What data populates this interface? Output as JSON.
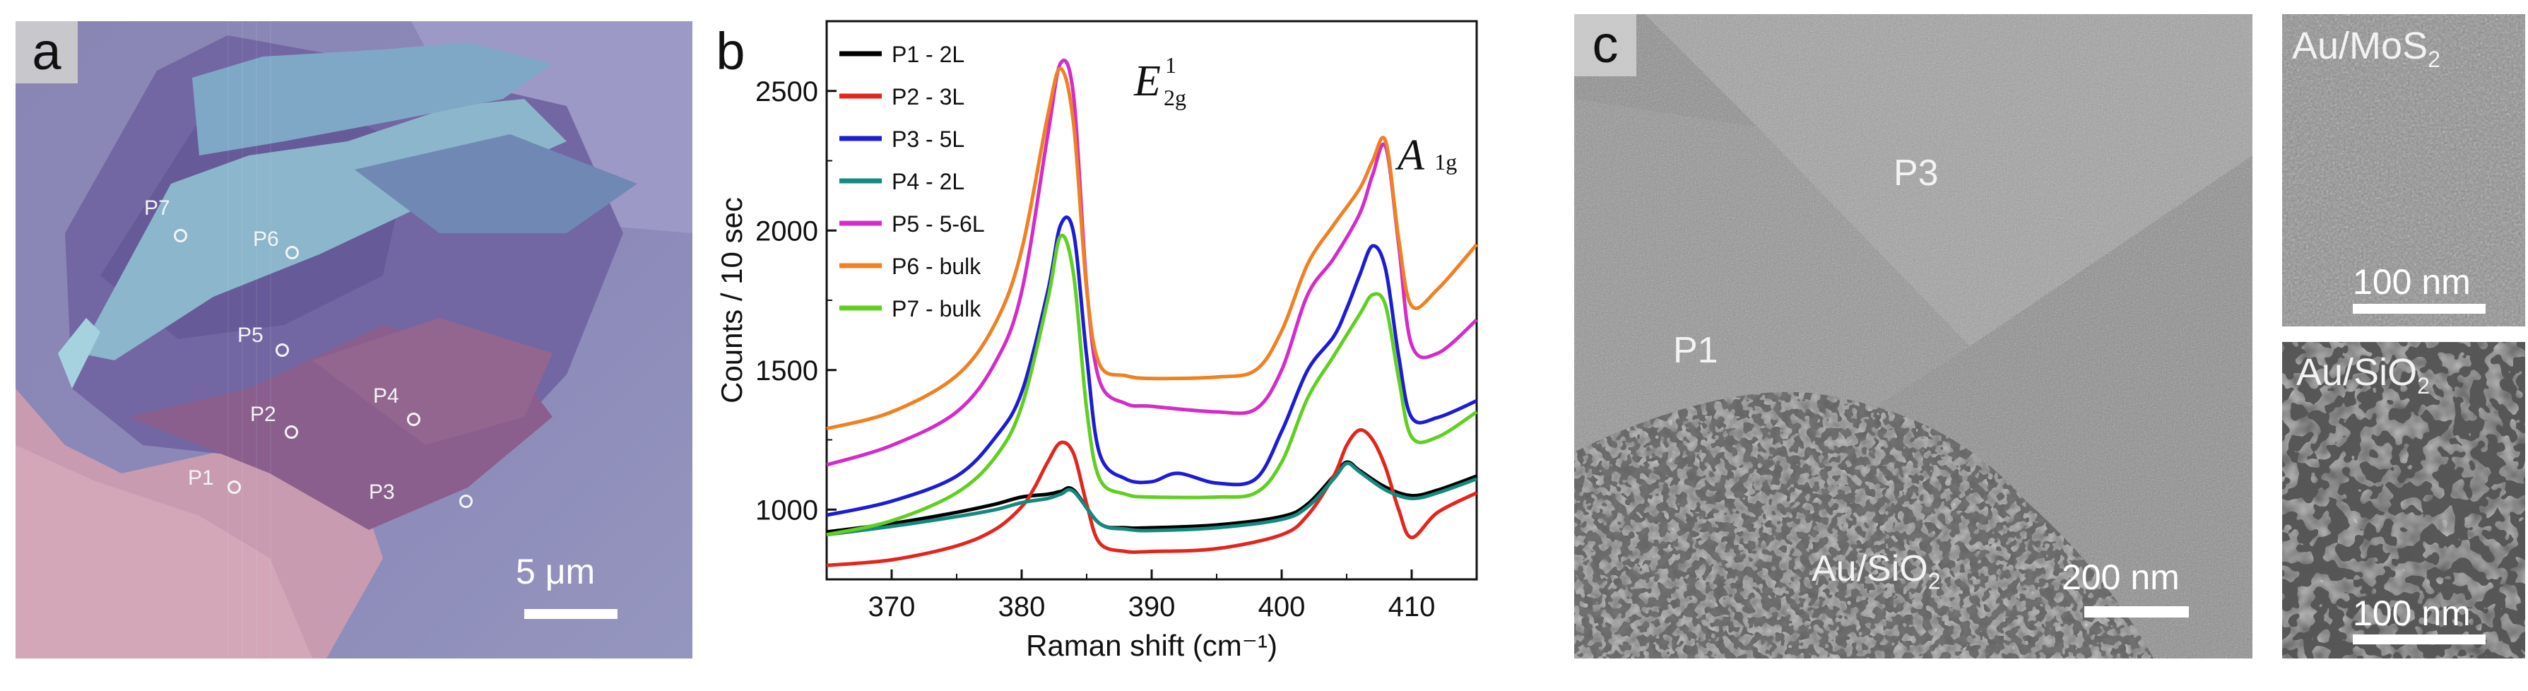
{
  "panel_a": {
    "label": "a",
    "points": [
      "P7",
      "P6",
      "P5",
      "P2",
      "P4",
      "P1",
      "P3"
    ],
    "scale_bar": "5 μm"
  },
  "panel_b": {
    "label": "b",
    "peak_labels": {
      "e2g_base": "E",
      "e2g_sup": "1",
      "e2g_sub": "2g",
      "a1g_base": "A",
      "a1g_sub": "1g"
    }
  },
  "panel_c": {
    "label": "c",
    "region_labels": {
      "p3": "P3",
      "p1": "P1",
      "au_sio2_prefix": "Au/SiO",
      "au_sio2_sub": "2"
    },
    "scale_bar_main": "200 nm",
    "inset_top": {
      "title_prefix": "Au/MoS",
      "title_sub": "2",
      "scale_bar": "100 nm"
    },
    "inset_bottom": {
      "title_prefix": "Au/SiO",
      "title_sub": "2",
      "scale_bar": "100 nm"
    }
  },
  "chart_data": {
    "type": "line",
    "title": "",
    "xlabel": "Raman shift (cm⁻¹)",
    "ylabel": "Counts / 10 sec",
    "xlim": [
      365,
      415
    ],
    "ylim": [
      750,
      2750
    ],
    "xticks": [
      370,
      380,
      390,
      400,
      410
    ],
    "yticks": [
      1000,
      1500,
      2000,
      2500
    ],
    "legend_position": "top-left",
    "series": [
      {
        "name": "P1 - 2L",
        "color": "#000000",
        "x": [
          365,
          370,
          375,
          378,
          380,
          382,
          383,
          384,
          386,
          388,
          390,
          395,
          400,
          402,
          404,
          405,
          406,
          408,
          410,
          412,
          415
        ],
        "y": [
          920,
          950,
          990,
          1020,
          1045,
          1055,
          1065,
          1070,
          950,
          935,
          935,
          945,
          975,
          1020,
          1120,
          1170,
          1140,
          1080,
          1050,
          1070,
          1120
        ]
      },
      {
        "name": "P2 - 3L",
        "color": "#e3261d",
        "x": [
          365,
          370,
          375,
          378,
          380,
          381,
          382,
          383,
          384,
          385,
          386,
          388,
          390,
          395,
          400,
          402,
          404,
          405,
          406,
          407,
          408,
          409,
          410,
          412,
          415
        ],
        "y": [
          800,
          820,
          870,
          930,
          1010,
          1080,
          1170,
          1240,
          1200,
          1020,
          880,
          850,
          850,
          860,
          910,
          980,
          1120,
          1230,
          1285,
          1250,
          1150,
          1000,
          900,
          990,
          1060
        ]
      },
      {
        "name": "P3 - 5L",
        "color": "#1c1cd6",
        "x": [
          365,
          370,
          375,
          378,
          380,
          382,
          383,
          384,
          385,
          386,
          388,
          390,
          392,
          395,
          398,
          400,
          402,
          404,
          405,
          406,
          407,
          408,
          409,
          410,
          412,
          415
        ],
        "y": [
          980,
          1030,
          1120,
          1260,
          1420,
          1780,
          2020,
          1990,
          1550,
          1200,
          1110,
          1100,
          1130,
          1095,
          1110,
          1280,
          1500,
          1620,
          1720,
          1840,
          1945,
          1860,
          1550,
          1330,
          1330,
          1390
        ]
      },
      {
        "name": "P4 - 2L",
        "color": "#14897e",
        "x": [
          365,
          370,
          375,
          378,
          380,
          382,
          383,
          384,
          386,
          388,
          390,
          395,
          400,
          402,
          404,
          405,
          406,
          408,
          410,
          412,
          415
        ],
        "y": [
          910,
          940,
          975,
          1000,
          1025,
          1040,
          1055,
          1065,
          950,
          930,
          925,
          935,
          965,
          1010,
          1110,
          1165,
          1135,
          1070,
          1040,
          1060,
          1110
        ]
      },
      {
        "name": "P5 - 5-6L",
        "color": "#d42bc9",
        "x": [
          365,
          370,
          375,
          378,
          380,
          382,
          383,
          384,
          385,
          386,
          388,
          390,
          395,
          398,
          400,
          402,
          404,
          406,
          407,
          408,
          409,
          410,
          412,
          415
        ],
        "y": [
          1160,
          1230,
          1350,
          1530,
          1780,
          2340,
          2600,
          2480,
          1800,
          1460,
          1380,
          1370,
          1350,
          1360,
          1500,
          1770,
          1900,
          2060,
          2200,
          2300,
          1950,
          1590,
          1560,
          1680
        ]
      },
      {
        "name": "P6 - bulk",
        "color": "#f08020",
        "x": [
          365,
          370,
          375,
          378,
          380,
          382,
          383,
          384,
          385,
          386,
          388,
          390,
          395,
          398,
          400,
          402,
          404,
          406,
          407,
          408,
          409,
          410,
          412,
          415
        ],
        "y": [
          1290,
          1350,
          1480,
          1670,
          1930,
          2410,
          2580,
          2380,
          1790,
          1520,
          1480,
          1470,
          1475,
          1500,
          1640,
          1880,
          2020,
          2150,
          2250,
          2320,
          1970,
          1730,
          1790,
          1950
        ]
      },
      {
        "name": "P7 - bulk",
        "color": "#60d020",
        "x": [
          365,
          370,
          375,
          378,
          380,
          382,
          383,
          384,
          385,
          386,
          388,
          390,
          395,
          398,
          400,
          402,
          404,
          406,
          407,
          408,
          409,
          410,
          412,
          415
        ],
        "y": [
          910,
          960,
          1060,
          1190,
          1370,
          1750,
          1980,
          1840,
          1360,
          1110,
          1055,
          1045,
          1045,
          1060,
          1170,
          1400,
          1550,
          1700,
          1770,
          1730,
          1470,
          1260,
          1260,
          1350
        ]
      }
    ]
  }
}
